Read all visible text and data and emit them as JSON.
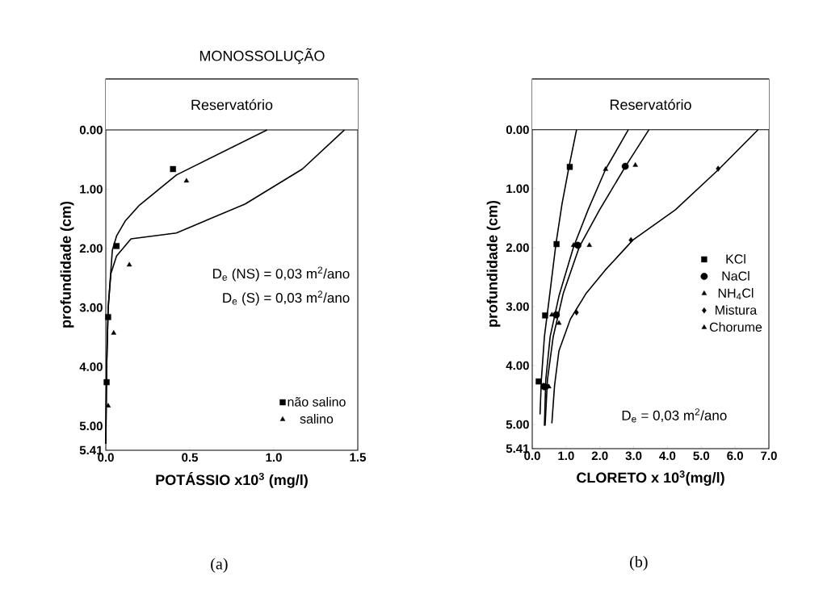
{
  "chart_data": [
    {
      "type": "line",
      "title": "MONOSSOLUÇÃO",
      "xlabel": "POTÁSSIO x10$^{3}$ (mg/l)",
      "ylabel": "profundidade (cm)",
      "xlim": [
        0,
        1.5
      ],
      "ylim": [
        5.41,
        -0.86
      ],
      "xticks": [
        {
          "value": 0,
          "label": "0.0"
        },
        0.5,
        {
          "value": 1,
          "label": "1.0"
        },
        1.5
      ],
      "yticks": [
        {
          "value": 0,
          "label": "0.00"
        },
        {
          "value": 1,
          "label": "1.00"
        },
        {
          "value": 2,
          "label": "2.00"
        },
        {
          "value": 3,
          "label": "3.00"
        },
        {
          "value": 4,
          "label": "4.00"
        },
        {
          "value": 5,
          "label": "5.00"
        },
        {
          "value": 5.41,
          "label": "5.41"
        }
      ],
      "bands": [
        {
          "axis": "y",
          "from": 0,
          "to": -0.86,
          "label": "Reservatório",
          "color": "#ffffff"
        }
      ],
      "legend": "bottom right",
      "annotations": [
        "D$_{e}$ (NS) = 0,03 m$^{2}$/ano",
        "D$_{e}$ (S)   = 0,03 m$^{2}$/ano",
        "(a)"
      ],
      "series": [
        {
          "color": "#000000",
          "x": [
            0.96,
            0.42,
            0.2,
            0.115,
            0.064,
            0.039,
            0.03,
            0.014,
            0.005,
            0
          ],
          "values": [
            0,
            0.76,
            1.27,
            1.54,
            1.79,
            2.03,
            2.38,
            3.01,
            4.0,
            5.3
          ]
        },
        {
          "color": "#000000",
          "x": [
            1.42,
            1.17,
            0.83,
            0.42,
            0.15,
            0.064,
            0.03,
            0.014,
            0.005,
            0
          ],
          "values": [
            0,
            0.66,
            1.25,
            1.74,
            1.84,
            2.13,
            2.43,
            3.01,
            4.0,
            5.3
          ]
        },
        {
          "type": "scatter",
          "name": "não salino",
          "marker": "square",
          "color": "#000000",
          "x": [
            0.4,
            0.064,
            0.014,
            0.005
          ],
          "values": [
            0.66,
            1.96,
            3.16,
            4.26
          ]
        },
        {
          "type": "scatter",
          "name": "salino",
          "marker": "triangle",
          "color": "#000000",
          "x": [
            0.48,
            0.14,
            0.047,
            0.014
          ],
          "values": [
            0.86,
            2.28,
            3.43,
            4.66
          ]
        }
      ]
    },
    {
      "type": "line",
      "xlabel": "CLORETO x 10$^{3}$(mg/l)",
      "ylabel": "profundidade (cm)",
      "xlim": [
        0,
        7
      ],
      "ylim": [
        5.41,
        -0.86
      ],
      "xticks": [
        {
          "value": 0,
          "label": "0.0"
        },
        {
          "value": 1,
          "label": "1.0"
        },
        {
          "value": 2,
          "label": "2.0"
        },
        {
          "value": 3,
          "label": "3.0"
        },
        {
          "value": 4,
          "label": "4.0"
        },
        {
          "value": 5,
          "label": "5.0"
        },
        {
          "value": 6,
          "label": "6.0"
        },
        {
          "value": 7,
          "label": "7.0"
        }
      ],
      "yticks": [
        {
          "value": 0,
          "label": "0.00"
        },
        {
          "value": 1,
          "label": "1.00"
        },
        {
          "value": 2,
          "label": "2.00"
        },
        {
          "value": 3,
          "label": "3.00"
        },
        {
          "value": 4,
          "label": "4.00"
        },
        {
          "value": 5,
          "label": "5.00"
        },
        {
          "value": 5.41,
          "label": "5.41"
        }
      ],
      "bands": [
        {
          "axis": "y",
          "from": 0,
          "to": -0.86,
          "label": "Reservatório",
          "color": "#ffffff"
        }
      ],
      "legend": "right",
      "annotations": [
        "D$_{e}$ = 0,03 m$^{2}$/ano",
        "(b)"
      ],
      "series": [
        {
          "color": "#000000",
          "x": [
            1.31,
            1.09,
            0.88,
            0.7,
            0.49,
            0.36,
            0.27,
            0.23
          ],
          "values": [
            0,
            0.62,
            1.26,
            1.94,
            2.92,
            3.51,
            4.24,
            4.83
          ]
        },
        {
          "color": "#000000",
          "x": [
            2.84,
            2.17,
            1.65,
            1.22,
            0.79,
            0.53,
            0.4,
            0.36
          ],
          "values": [
            0,
            0.67,
            1.36,
            1.99,
            2.82,
            3.51,
            4.24,
            5.02
          ]
        },
        {
          "color": "#000000",
          "x": [
            3.45,
            2.76,
            1.99,
            1.39,
            0.92,
            0.62,
            0.45,
            0.38
          ],
          "values": [
            0,
            0.62,
            1.36,
            1.99,
            2.77,
            3.51,
            4.24,
            5.02
          ]
        },
        {
          "color": "#000000",
          "x": [
            6.68,
            5.52,
            4.23,
            2.98,
            2.16,
            1.6,
            1.13,
            0.79,
            0.66,
            0.58
          ],
          "values": [
            0,
            0.67,
            1.36,
            1.87,
            2.38,
            2.77,
            3.21,
            3.75,
            4.34,
            4.98
          ]
        },
        {
          "type": "scatter",
          "name": "KCl",
          "marker": "square",
          "color": "#000000",
          "x": [
            1.11,
            0.72,
            0.38,
            0.19
          ],
          "values": [
            0.63,
            1.94,
            3.15,
            4.27
          ]
        },
        {
          "type": "scatter",
          "name": "NaCl",
          "marker": "circle",
          "color": "#000000",
          "x": [
            2.75,
            1.35,
            0.71,
            0.36
          ],
          "values": [
            0.62,
            1.96,
            3.14,
            4.36
          ]
        },
        {
          "type": "scatter",
          "name": "NH$_{4}$Cl",
          "marker": "triangle",
          "color": "#000000",
          "x": [
            2.17,
            1.22,
            0.58,
            0.32
          ],
          "values": [
            0.67,
            1.96,
            3.14,
            4.34
          ]
        },
        {
          "type": "scatter",
          "name": "Mistura",
          "marker": "diamond",
          "color": "#000000",
          "x": [
            5.5,
            2.92,
            1.31,
            0.45
          ],
          "values": [
            0.66,
            1.87,
            3.1,
            4.36
          ]
        },
        {
          "type": "scatter",
          "name": "Chorume",
          "marker": "triangle",
          "color": "#000000",
          "x": [
            3.05,
            1.69,
            0.79,
            0.49
          ],
          "values": [
            0.6,
            1.96,
            3.28,
            4.36
          ]
        }
      ]
    }
  ]
}
